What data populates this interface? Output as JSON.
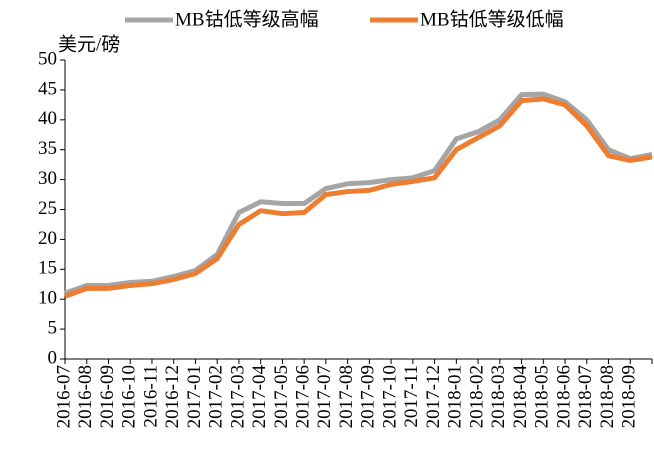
{
  "chart_data": {
    "type": "line",
    "y_label": "美元/磅",
    "categories": [
      "2016-07",
      "2016-08",
      "2016-09",
      "2016-10",
      "2016-11",
      "2016-12",
      "2017-01",
      "2017-02",
      "2017-03",
      "2017-04",
      "2017-05",
      "2017-06",
      "2017-07",
      "2017-08",
      "2017-09",
      "2017-10",
      "2017-11",
      "2017-12",
      "2018-01",
      "2018-02",
      "2018-03",
      "2018-04",
      "2018-05",
      "2018-06",
      "2018-07",
      "2018-08",
      "2018-09",
      null
    ],
    "series": [
      {
        "name": "MB钴低等级高幅",
        "color": "#a5a5a5",
        "values": [
          11,
          12.3,
          12.3,
          12.8,
          13,
          13.8,
          14.8,
          17.5,
          24.5,
          26.3,
          26,
          26,
          28.5,
          29.3,
          29.5,
          30,
          30.3,
          31.5,
          36.8,
          38,
          40,
          44.2,
          44.3,
          43,
          40,
          35,
          33.5,
          34.2
        ]
      },
      {
        "name": "MB钴低等级低幅",
        "color": "#ed7d31",
        "values": [
          10.5,
          11.8,
          11.8,
          12.3,
          12.6,
          13.3,
          14.3,
          16.8,
          22.5,
          24.8,
          24.3,
          24.5,
          27.5,
          28,
          28.2,
          29.2,
          29.7,
          30.3,
          35,
          37,
          39,
          43.2,
          43.5,
          42.5,
          39,
          34,
          33.2,
          33.8
        ]
      }
    ],
    "ylim": [
      0,
      50
    ],
    "yticks": [
      0,
      5,
      10,
      15,
      20,
      25,
      30,
      35,
      40,
      45,
      50
    ],
    "grid": false
  }
}
